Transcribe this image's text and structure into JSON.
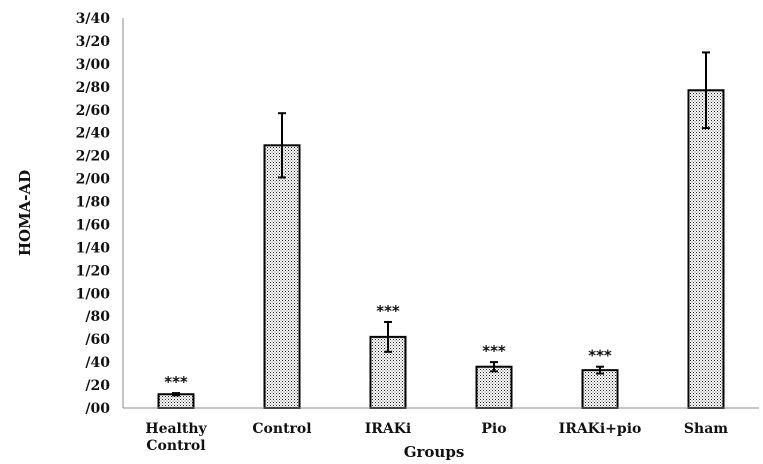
{
  "chart_data": {
    "type": "bar",
    "categories": [
      [
        "Healthy",
        "Control"
      ],
      [
        "Control"
      ],
      [
        "IRAKi"
      ],
      [
        "Pio"
      ],
      [
        "IRAKi+pio"
      ],
      [
        "Sham"
      ]
    ],
    "values": [
      0.12,
      2.29,
      0.62,
      0.36,
      0.33,
      2.77
    ],
    "errors": [
      0.01,
      0.28,
      0.13,
      0.04,
      0.03,
      0.33
    ],
    "annotations": [
      "***",
      "",
      "***",
      "***",
      "***",
      ""
    ],
    "yticks": [
      "/00",
      "/20",
      "/40",
      "/60",
      "/80",
      "1/00",
      "1/20",
      "1/40",
      "1/60",
      "1/80",
      "2/00",
      "2/20",
      "2/40",
      "2/60",
      "2/80",
      "3/00",
      "3/20",
      "3/40"
    ],
    "ylim": [
      0,
      3.4
    ],
    "ytick_step": 0.2,
    "xlabel": "Groups",
    "ylabel": "HOMA-AD",
    "grid": false,
    "bar_pattern": "stipple",
    "bar_color": "#ffffff",
    "edge_color": "#000000"
  }
}
